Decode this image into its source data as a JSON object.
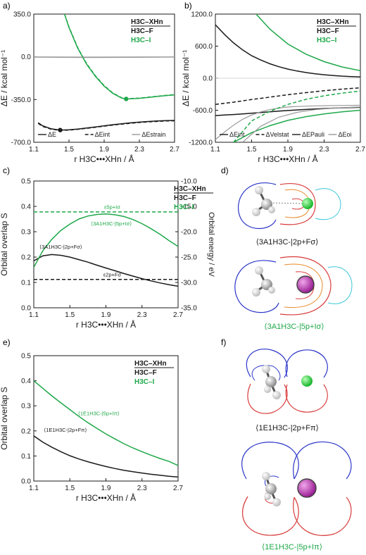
{
  "colors": {
    "black": "#1a1a1a",
    "green": "#1fa84a",
    "gray": "#9a9a9a",
    "blue": "#2b36c8",
    "red": "#d83a3a",
    "orange": "#e88a2a",
    "cyan": "#39c6d6",
    "magenta": "#b02aa6",
    "ball_green": "#27cf3a"
  },
  "panel_labels": [
    "a)",
    "b)",
    "c)",
    "d)",
    "e)",
    "f)"
  ],
  "chart_data": [
    {
      "id": "a",
      "type": "line",
      "xlabel": "r H3C•••XHn / Å",
      "ylabel": "ΔE / kcal mol⁻¹",
      "xlim": [
        1.1,
        2.7
      ],
      "ylim": [
        -700,
        350
      ],
      "xticks": [
        "1.1",
        "1.5",
        "1.9",
        "2.3",
        "2.7"
      ],
      "yticks": [
        "350.0",
        "0.0",
        "-350.0",
        "-700.0"
      ],
      "legend_title": [
        "H3C–XHn",
        "H3C–F",
        "H3C–I"
      ],
      "legend": [
        "ΔE",
        "ΔEint",
        "ΔEstrain"
      ],
      "series": [
        {
          "x": [
            1.15,
            1.2,
            1.3,
            1.4,
            1.5,
            1.6,
            1.7,
            1.8,
            1.9,
            2.0,
            2.1,
            2.2,
            2.3,
            2.4,
            2.5,
            2.6,
            2.7
          ],
          "y": [
            -540,
            -565,
            -590,
            -600,
            -598,
            -592,
            -583,
            -574,
            -565,
            -556,
            -548,
            -541,
            -535,
            -530,
            -526,
            -523,
            -521
          ],
          "color": "black",
          "dash": "solid"
        },
        {
          "x": [
            1.15,
            1.2,
            1.3,
            1.4,
            1.5,
            1.6,
            1.7,
            1.8,
            1.9,
            2.0,
            2.1,
            2.2,
            2.3,
            2.4,
            2.5,
            2.6,
            2.7
          ],
          "y": [
            -545,
            -570,
            -593,
            -602,
            -600,
            -594,
            -586,
            -577,
            -568,
            -559,
            -551,
            -544,
            -538,
            -533,
            -529,
            -526,
            -524
          ],
          "color": "black",
          "dash": "dash"
        },
        {
          "x": [
            1.1,
            1.7,
            2.3,
            2.7
          ],
          "y": [
            -3,
            -6,
            -4,
            -2
          ],
          "color": "gray",
          "dash": "solid"
        },
        {
          "x": [
            1.45,
            1.5,
            1.6,
            1.7,
            1.8,
            1.9,
            2.0,
            2.1,
            2.15,
            2.2,
            2.3,
            2.4,
            2.5,
            2.6,
            2.7
          ],
          "y": [
            350,
            240,
            70,
            -60,
            -160,
            -240,
            -300,
            -338,
            -345,
            -344,
            -340,
            -333,
            -325,
            -318,
            -312
          ],
          "color": "green",
          "dash": "solid"
        },
        {
          "x": [
            1.45,
            1.5,
            1.6,
            1.7,
            1.8,
            1.9,
            2.0,
            2.1,
            2.15,
            2.2,
            2.3,
            2.4,
            2.5,
            2.6,
            2.7
          ],
          "y": [
            350,
            245,
            75,
            -55,
            -155,
            -236,
            -297,
            -336,
            -343,
            -342,
            -338,
            -331,
            -323,
            -316,
            -310
          ],
          "color": "green",
          "dash": "dash"
        },
        {
          "x": [
            1.1,
            1.7,
            2.3,
            2.7
          ],
          "y": [
            -1,
            -3,
            -2,
            -1
          ],
          "color": "gray",
          "dash": "solid"
        }
      ],
      "points": [
        {
          "x": 1.4,
          "y": -600,
          "color": "black"
        },
        {
          "x": 2.15,
          "y": -345,
          "color": "green"
        }
      ]
    },
    {
      "id": "b",
      "type": "line",
      "xlabel": "r H3C•••XHn / Å",
      "ylabel": "ΔE / kcal mol⁻¹",
      "xlim": [
        1.1,
        2.7
      ],
      "ylim": [
        -1200,
        1200
      ],
      "xticks": [
        "1.1",
        "1.5",
        "1.9",
        "2.3",
        "2.7"
      ],
      "yticks": [
        "1200.0",
        "600.0",
        "0.0",
        "-600.0",
        "-1200.0"
      ],
      "legend_title": [
        "H3C–XHn",
        "H3C–F",
        "H3C–I"
      ],
      "legend": [
        "ΔEint",
        "ΔVelstat",
        "ΔEPauli",
        "ΔEoi"
      ],
      "series": [
        {
          "x": [
            1.1,
            1.2,
            1.3,
            1.4,
            1.5,
            1.6,
            1.7,
            1.8,
            1.9,
            2.0,
            2.1,
            2.2,
            2.3,
            2.4,
            2.5,
            2.6,
            2.7
          ],
          "y": [
            -700,
            -690,
            -680,
            -668,
            -655,
            -643,
            -630,
            -617,
            -605,
            -595,
            -585,
            -576,
            -568,
            -561,
            -555,
            -550,
            -546
          ],
          "color": "black",
          "dash": "solid"
        },
        {
          "x": [
            1.1,
            1.3,
            1.5,
            1.7,
            1.9,
            2.1,
            2.3,
            2.5,
            2.7
          ],
          "y": [
            -490,
            -450,
            -400,
            -355,
            -310,
            -270,
            -235,
            -205,
            -180
          ],
          "color": "black",
          "dash": "dash"
        },
        {
          "x": [
            1.1,
            1.2,
            1.3,
            1.4,
            1.5,
            1.6,
            1.7,
            1.8,
            1.9,
            2.0,
            2.1,
            2.2,
            2.3,
            2.4,
            2.5,
            2.6,
            2.7
          ],
          "y": [
            1000,
            820,
            660,
            530,
            420,
            340,
            270,
            215,
            170,
            135,
            105,
            82,
            64,
            50,
            38,
            30,
            22
          ],
          "color": "black",
          "dash": "solid"
        },
        {
          "x": [
            1.1,
            1.2,
            1.3,
            1.4,
            1.5,
            1.6,
            1.7,
            1.8,
            1.9,
            2.0,
            2.1,
            2.2,
            2.3,
            2.4,
            2.5,
            2.6,
            2.7
          ],
          "y": [
            -1150,
            -1010,
            -880,
            -770,
            -690,
            -630,
            -590,
            -560,
            -540,
            -530,
            -523,
            -518,
            -515,
            -512,
            -510,
            -509,
            -508
          ],
          "color": "gray",
          "dash": "solid"
        },
        {
          "x": [
            1.3,
            1.5,
            1.7,
            1.9,
            2.1,
            2.3,
            2.5,
            2.7
          ],
          "y": [
            -1200,
            -1020,
            -890,
            -790,
            -720,
            -670,
            -630,
            -600
          ],
          "color": "green",
          "dash": "solid"
        },
        {
          "x": [
            1.3,
            1.5,
            1.7,
            1.9,
            2.1,
            2.3,
            2.5,
            2.7
          ],
          "y": [
            -1200,
            -800,
            -620,
            -490,
            -395,
            -330,
            -280,
            -240
          ],
          "color": "green",
          "dash": "dash"
        },
        {
          "x": [
            1.55,
            1.7,
            1.9,
            2.1,
            2.3,
            2.5,
            2.7
          ],
          "y": [
            1200,
            920,
            640,
            450,
            310,
            210,
            140
          ],
          "color": "green",
          "dash": "solid"
        },
        {
          "x": [
            1.4,
            1.6,
            1.8,
            2.0,
            2.2,
            2.4,
            2.7
          ],
          "y": [
            -1200,
            -900,
            -730,
            -640,
            -590,
            -560,
            -540
          ],
          "color": "gray",
          "dash": "solid"
        }
      ]
    },
    {
      "id": "c",
      "type": "line",
      "xlabel": "r H3C•••XHn / Å",
      "ylabel": "Orbital overlap S",
      "ylabel2": "Orbital energy / eV",
      "xlim": [
        1.1,
        2.7
      ],
      "ylim": [
        0,
        0.5
      ],
      "ylim2": [
        -35,
        -10
      ],
      "xticks": [
        "1.1",
        "1.5",
        "1.9",
        "2.3",
        "2.7"
      ],
      "yticks": [
        "0.5",
        "0.4",
        "0.3",
        "0.2",
        "0.1",
        "0.0"
      ],
      "yticks2": [
        "-10.0",
        "-15.0",
        "-20.0",
        "-25.0",
        "-30.0",
        "-35.0"
      ],
      "legend_title": [
        "H3C–XHn",
        "H3C–F",
        "H3C–I"
      ],
      "series": [
        {
          "x": [
            1.1,
            1.2,
            1.3,
            1.4,
            1.5,
            1.6,
            1.7,
            1.8,
            1.9,
            2.0,
            2.1,
            2.2,
            2.3,
            2.4,
            2.5,
            2.6,
            2.7
          ],
          "y": [
            0.185,
            0.205,
            0.21,
            0.207,
            0.2,
            0.19,
            0.18,
            0.168,
            0.157,
            0.146,
            0.135,
            0.125,
            0.115,
            0.106,
            0.098,
            0.091,
            0.085
          ],
          "color": "black",
          "dash": "solid",
          "axis": "left"
        },
        {
          "x": [
            1.1,
            2.7
          ],
          "y": [
            0.112,
            0.112
          ],
          "color": "black",
          "dash": "dash",
          "axis": "left"
        },
        {
          "x": [
            1.1,
            1.2,
            1.3,
            1.4,
            1.5,
            1.6,
            1.7,
            1.8,
            1.9,
            2.0,
            2.1,
            2.2,
            2.3,
            2.4,
            2.5,
            2.6,
            2.7
          ],
          "y": [
            0.16,
            0.225,
            0.27,
            0.305,
            0.33,
            0.35,
            0.362,
            0.368,
            0.37,
            0.367,
            0.36,
            0.348,
            0.332,
            0.312,
            0.29,
            0.265,
            0.242
          ],
          "color": "green",
          "dash": "solid",
          "axis": "left"
        },
        {
          "x": [
            1.1,
            2.7
          ],
          "y": [
            0.378,
            0.378
          ],
          "color": "green",
          "dash": "dash",
          "axis": "left"
        }
      ],
      "annotations": [
        {
          "text": "ε5p+Iσ",
          "x": 1.97,
          "y": 0.39,
          "color": "green"
        },
        {
          "text": "⟨3A1H3C-|5p+Iσ⟩",
          "x": 1.96,
          "y": 0.325,
          "color": "green"
        },
        {
          "text": "⟨3A1H3C-|2p+Fσ⟩",
          "x": 1.4,
          "y": 0.233,
          "color": "black"
        },
        {
          "text": "ε2p+Fσ",
          "x": 1.97,
          "y": 0.124,
          "color": "black"
        }
      ]
    },
    {
      "id": "e",
      "type": "line",
      "xlabel": "r H3C•••XHn / Å",
      "ylabel": "Orbital overlap S",
      "xlim": [
        1.1,
        2.7
      ],
      "ylim": [
        0,
        0.5
      ],
      "xticks": [
        "1.1",
        "1.5",
        "1.9",
        "2.3",
        "2.7"
      ],
      "yticks": [
        "0.5",
        "0.4",
        "0.3",
        "0.2",
        "0.1",
        "0.0"
      ],
      "legend_title": [
        "H3C–XHn",
        "H3C–F",
        "H3C–I"
      ],
      "series": [
        {
          "x": [
            1.1,
            1.2,
            1.3,
            1.4,
            1.5,
            1.6,
            1.7,
            1.8,
            1.9,
            2.0,
            2.1,
            2.2,
            2.3,
            2.4,
            2.5,
            2.6,
            2.7
          ],
          "y": [
            0.18,
            0.155,
            0.135,
            0.117,
            0.101,
            0.088,
            0.077,
            0.067,
            0.058,
            0.05,
            0.043,
            0.037,
            0.032,
            0.027,
            0.023,
            0.019,
            0.016
          ],
          "color": "black",
          "dash": "solid"
        },
        {
          "x": [
            1.1,
            1.2,
            1.3,
            1.4,
            1.5,
            1.6,
            1.7,
            1.8,
            1.9,
            2.0,
            2.1,
            2.2,
            2.3,
            2.4,
            2.5,
            2.6,
            2.7
          ],
          "y": [
            0.4,
            0.37,
            0.34,
            0.312,
            0.285,
            0.258,
            0.233,
            0.21,
            0.188,
            0.168,
            0.149,
            0.132,
            0.117,
            0.103,
            0.09,
            0.078,
            0.062
          ],
          "color": "green",
          "dash": "solid"
        }
      ],
      "annotations": [
        {
          "text": "⟨1E1H3C-|5p+Iπ⟩",
          "x": 1.82,
          "y": 0.262,
          "color": "green"
        },
        {
          "text": "⟨1E1H3C-|2p+Fπ⟩",
          "x": 1.45,
          "y": 0.196,
          "color": "black"
        }
      ]
    }
  ],
  "captions": {
    "d1": "⟨3A1H3C-|2p+Fσ⟩",
    "d2": "⟨3A1H3C-|5p+Iσ⟩",
    "f1": "⟨1E1H3C-|2p+Fπ⟩",
    "f2": "⟨1E1H3C-|5p+Iπ⟩"
  }
}
